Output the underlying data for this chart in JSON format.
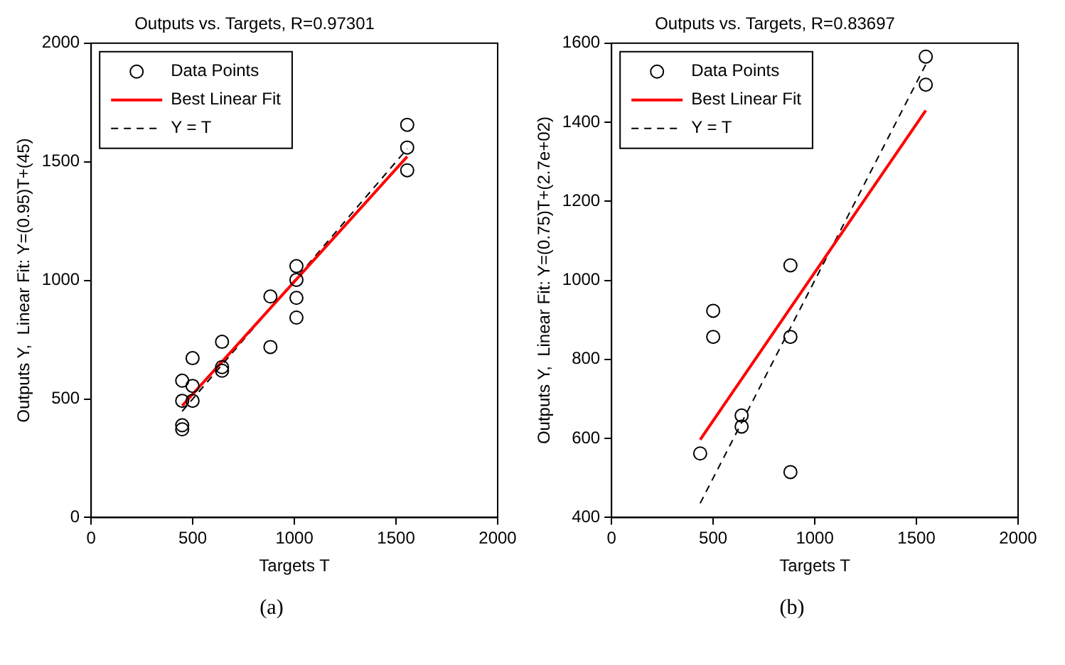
{
  "chart_data": [
    {
      "type": "scatter",
      "title": "Outputs vs. Targets, R=0.97301",
      "xlabel": "Targets T",
      "ylabel": "Outputs Y,  Linear Fit: Y=(0.95)T+(45)",
      "xlim": [
        0,
        2000
      ],
      "ylim": [
        0,
        2000
      ],
      "xticks": [
        0,
        500,
        1000,
        1500,
        2000
      ],
      "yticks": [
        0,
        500,
        1000,
        1500,
        2000
      ],
      "grid": false,
      "legend": "top left",
      "annotations": [
        "(a)"
      ],
      "series": [
        {
          "name": "Data Points",
          "type": "scatter",
          "marker": "circle",
          "color": "#000000",
          "x": [
            448,
            448,
            448,
            448,
            499,
            499,
            499,
            644,
            644,
            644,
            882,
            882,
            1010,
            1010,
            1010,
            1010,
            1555,
            1555,
            1555
          ],
          "values": [
            389,
            372,
            492,
            577,
            492,
            555,
            672,
            634,
            619,
            741,
            932,
            719,
            1060,
            1002,
            926,
            843,
            1656,
            1560,
            1464
          ]
        },
        {
          "name": "Best Linear Fit",
          "type": "line",
          "marker": "none",
          "color": "#ff0000",
          "x": [
            448,
            1555
          ],
          "values": [
            471,
            1522
          ]
        },
        {
          "name": "Y = T",
          "type": "line",
          "marker": "none",
          "line_style": "dashed",
          "color": "#000000",
          "x": [
            448,
            1555
          ],
          "values": [
            448,
            1555
          ]
        }
      ]
    },
    {
      "type": "scatter",
      "title": "Outputs vs. Targets, R=0.83697",
      "xlabel": "Targets T",
      "ylabel": "Outputs Y,  Linear Fit: Y=(0.75)T+(2.7e+02)",
      "xlim": [
        0,
        2000
      ],
      "ylim": [
        400,
        1600
      ],
      "xticks": [
        0,
        500,
        1000,
        1500,
        2000
      ],
      "yticks": [
        400,
        600,
        800,
        1000,
        1200,
        1400,
        1600
      ],
      "grid": false,
      "legend": "top left",
      "annotations": [
        "(b)"
      ],
      "series": [
        {
          "name": "Data Points",
          "type": "scatter",
          "marker": "circle",
          "color": "#000000",
          "x": [
            436,
            500,
            500,
            640,
            640,
            880,
            880,
            880,
            1546,
            1546
          ],
          "values": [
            562,
            923,
            857,
            658,
            630,
            1038,
            857,
            515,
            1566,
            1495
          ]
        },
        {
          "name": "Best Linear Fit",
          "type": "line",
          "marker": "none",
          "color": "#ff0000",
          "x": [
            436,
            1546
          ],
          "values": [
            597,
            1430
          ]
        },
        {
          "name": "Y = T",
          "type": "line",
          "marker": "none",
          "line_style": "dashed",
          "color": "#000000",
          "x": [
            436,
            1546
          ],
          "values": [
            436,
            1546
          ]
        }
      ]
    }
  ]
}
